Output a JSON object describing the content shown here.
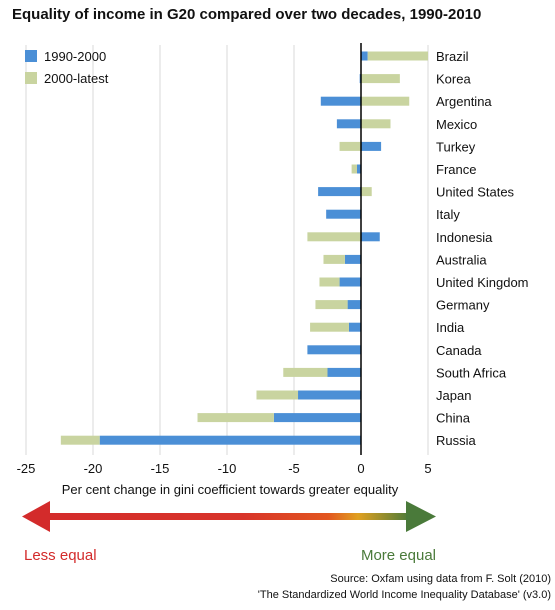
{
  "chart_data": {
    "type": "bar",
    "title": "Equality of income in G20 compared over two decades, 1990-2010",
    "xlabel": "Per cent change in gini coefficient towards greater equality",
    "ylabel": "",
    "xlim": [
      -25,
      5
    ],
    "xticks": [
      -25,
      -20,
      -15,
      -10,
      -5,
      0,
      5
    ],
    "grid": true,
    "orientation": "horizontal",
    "legend_position": "top-left",
    "categories": [
      "Brazil",
      "Korea",
      "Argentina",
      "Mexico",
      "Turkey",
      "France",
      "United States",
      "Italy",
      "Indonesia",
      "Australia",
      "United Kingdom",
      "Germany",
      "India",
      "Canada",
      "South Africa",
      "Japan",
      "China",
      "Russia"
    ],
    "series": [
      {
        "name": "1990-2000",
        "color": "#4b8fd6",
        "values": [
          0.5,
          -0.1,
          -3.0,
          -1.8,
          1.5,
          -0.3,
          -3.2,
          -2.6,
          1.4,
          -1.2,
          -1.6,
          -1.0,
          -0.9,
          -4.0,
          -2.5,
          -4.7,
          -6.5,
          -19.5
        ]
      },
      {
        "name": "2000-latest",
        "color": "#c9d4a0",
        "values": [
          4.5,
          2.9,
          3.6,
          2.2,
          -1.6,
          -0.4,
          0.8,
          0.0,
          -4.0,
          -1.6,
          -1.5,
          -2.4,
          -2.9,
          0.0,
          -3.3,
          -3.1,
          -5.7,
          -2.9
        ]
      }
    ],
    "annotations": {
      "left": "Less equal",
      "right": "More equal"
    },
    "arrow_colors": {
      "left": "#d32b2b",
      "right": "#4a7a3a"
    },
    "source_lines": [
      "Source: Oxfam using data from F. Solt (2010)",
      "'The Standardized World Income Inequality Database' (v3.0)"
    ]
  }
}
